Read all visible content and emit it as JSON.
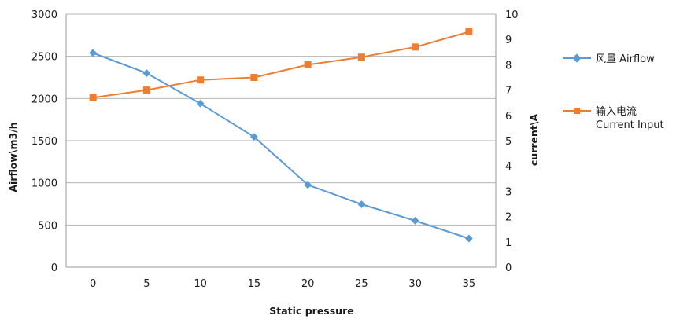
{
  "chart_data": {
    "type": "line",
    "title": "",
    "xlabel": "Static pressure",
    "ylabel": "Airflow\\m3/h",
    "y2label": "current\\A",
    "categories": [
      "0",
      "5",
      "10",
      "15",
      "20",
      "25",
      "30",
      "35"
    ],
    "ylim": [
      0,
      3000
    ],
    "y_ticks": [
      "0",
      "500",
      "1000",
      "1500",
      "2000",
      "2500",
      "3000"
    ],
    "y2lim": [
      0,
      10
    ],
    "y2_ticks": [
      "0",
      "1",
      "2",
      "3",
      "4",
      "5",
      "6",
      "7",
      "8",
      "9",
      "10"
    ],
    "grid": true,
    "legend_position": "right",
    "series": [
      {
        "name": "风量 Airflow",
        "axis": "left",
        "color": "#5b9bd5",
        "marker": "diamond",
        "values": [
          2540,
          2300,
          1940,
          1545,
          975,
          745,
          550,
          340
        ]
      },
      {
        "name_line1": "输入电流",
        "name_line2": "Current Input",
        "axis": "right",
        "color": "#ed7d31",
        "marker": "square",
        "values": [
          6.7,
          7.0,
          7.4,
          7.5,
          8.0,
          8.3,
          8.7,
          9.3
        ]
      }
    ]
  }
}
